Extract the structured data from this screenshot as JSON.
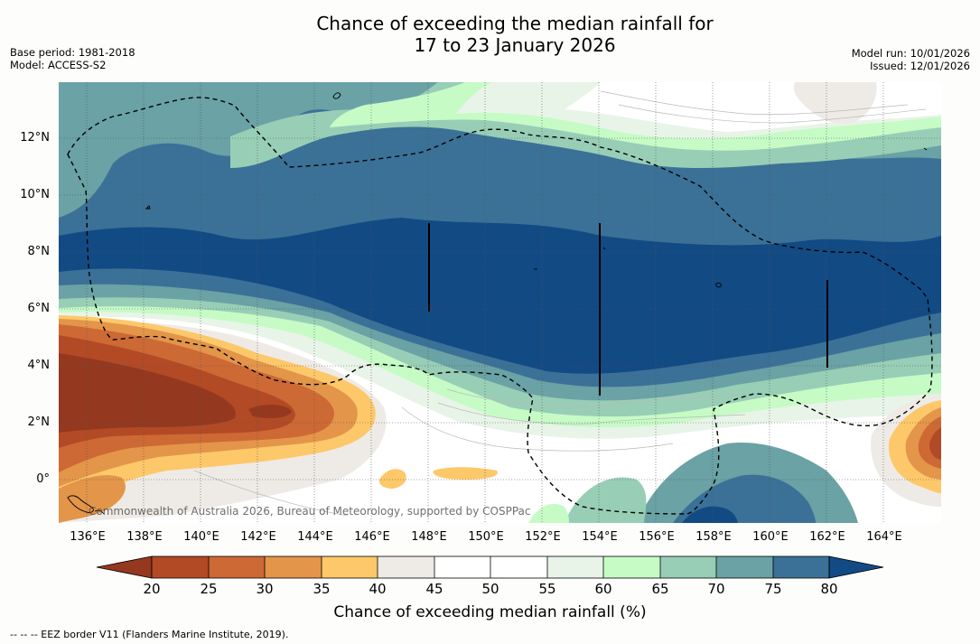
{
  "title": {
    "line1": "Chance of exceeding the median rainfall for",
    "line2": "17 to 23 January 2026"
  },
  "meta": {
    "base_period": "Base period: 1981-2018",
    "model": "Model: ACCESS-S2",
    "model_run": "Model run: 10/01/2026",
    "issued": "Issued: 12/01/2026"
  },
  "axes": {
    "lon_range": [
      135,
      166
    ],
    "lat_range": [
      -1.5,
      14
    ],
    "lat_ticks": [
      {
        "value": 12,
        "label": "12°N"
      },
      {
        "value": 10,
        "label": "10°N"
      },
      {
        "value": 8,
        "label": "8°N"
      },
      {
        "value": 6,
        "label": "6°N"
      },
      {
        "value": 4,
        "label": "4°N"
      },
      {
        "value": 2,
        "label": "2°N"
      },
      {
        "value": 0,
        "label": "0°"
      }
    ],
    "lon_ticks": [
      {
        "value": 136,
        "label": "136°E"
      },
      {
        "value": 138,
        "label": "138°E"
      },
      {
        "value": 140,
        "label": "140°E"
      },
      {
        "value": 142,
        "label": "142°E"
      },
      {
        "value": 144,
        "label": "144°E"
      },
      {
        "value": 146,
        "label": "146°E"
      },
      {
        "value": 148,
        "label": "148°E"
      },
      {
        "value": 150,
        "label": "150°E"
      },
      {
        "value": 152,
        "label": "152°E"
      },
      {
        "value": 154,
        "label": "154°E"
      },
      {
        "value": 156,
        "label": "156°E"
      },
      {
        "value": 158,
        "label": "158°E"
      },
      {
        "value": 160,
        "label": "160°E"
      },
      {
        "value": 162,
        "label": "162°E"
      },
      {
        "value": 164,
        "label": "164°E"
      }
    ]
  },
  "watermark": "Commonwealth of Australia 2026, Bureau of Meteorology, supported by COSPPac",
  "colorbar": {
    "title": "Chance of exceeding median rainfall (%)",
    "ticks": [
      "20",
      "25",
      "30",
      "35",
      "40",
      "45",
      "50",
      "55",
      "60",
      "65",
      "70",
      "75",
      "80"
    ],
    "colors": {
      "below20": "#94391f",
      "b20_25": "#b24a26",
      "b25_30": "#cd6935",
      "b30_35": "#e39549",
      "b35_40": "#fdc86a",
      "b40_45": "#eeebe6",
      "b45_50": "#ffffff",
      "b50_55": "#ffffff",
      "b55_60": "#e8f4e8",
      "b60_65": "#c6fbc6",
      "b65_70": "#98ceb6",
      "b70_75": "#6aa2a5",
      "b75_80": "#3b7197",
      "above80": "#124a84"
    }
  },
  "eez_note": "--  --  -- EEZ border V11 (Flanders Marine Institute, 2019)."
}
